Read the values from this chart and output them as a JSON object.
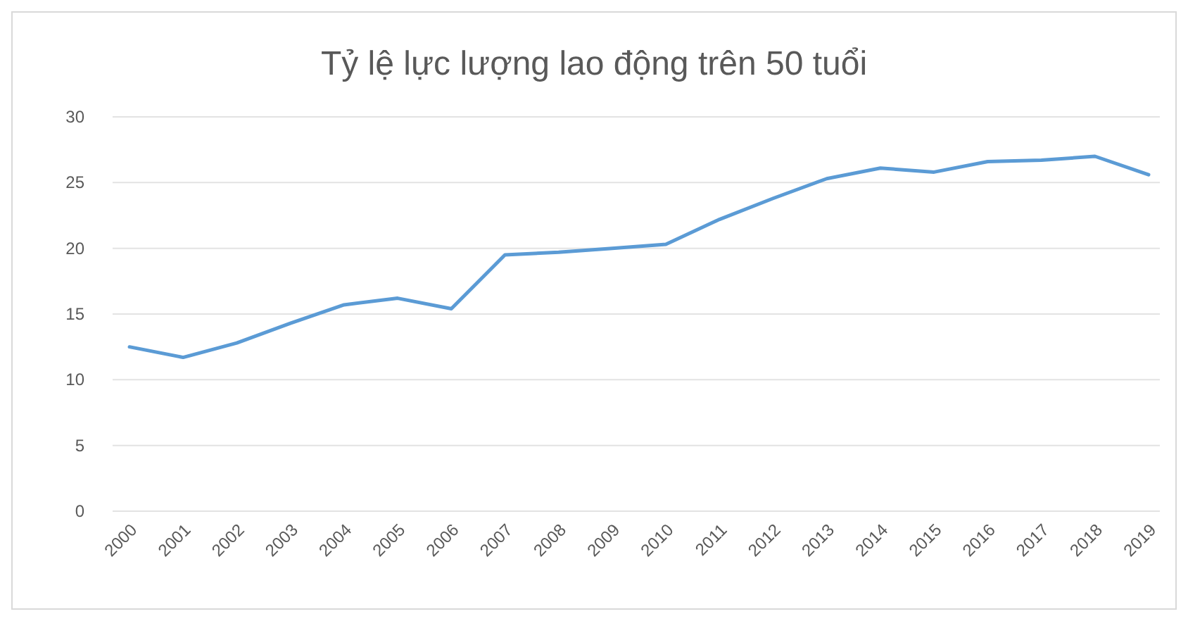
{
  "chart_data": {
    "type": "line",
    "title": "Tỷ lệ lực lượng lao động trên 50 tuổi",
    "categories": [
      "2000",
      "2001",
      "2002",
      "2003",
      "2004",
      "2005",
      "2006",
      "2007",
      "2008",
      "2009",
      "2010",
      "2011",
      "2012",
      "2013",
      "2014",
      "2015",
      "2016",
      "2017",
      "2018",
      "2019"
    ],
    "series": [
      {
        "color": "#5b9bd5",
        "values": [
          12.5,
          11.7,
          12.8,
          14.3,
          15.7,
          16.2,
          15.4,
          19.5,
          19.7,
          20.0,
          20.3,
          22.2,
          23.8,
          25.3,
          26.1,
          25.8,
          26.6,
          26.7,
          27.0,
          25.6
        ]
      }
    ],
    "ylim": [
      0,
      30
    ],
    "yticks": [
      0,
      5,
      10,
      15,
      20,
      25,
      30
    ],
    "grid": "y",
    "marker": "none",
    "line_style": "solid"
  }
}
